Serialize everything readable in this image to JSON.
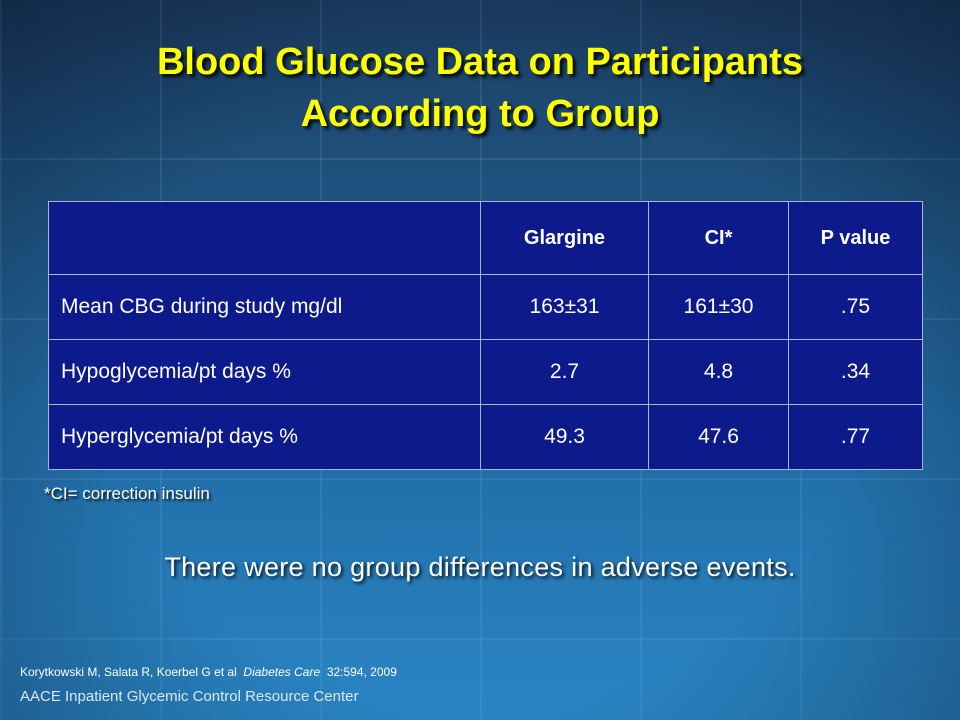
{
  "slide": {
    "title_line1": "Blood Glucose Data on Participants",
    "title_line2": "According to Group"
  },
  "table": {
    "headers": [
      "",
      "Glargine",
      "CI*",
      "P value"
    ],
    "rows": [
      {
        "label": "Mean CBG during study mg/dl",
        "glargine": "163±31",
        "ci": "161±30",
        "p": ".75"
      },
      {
        "label": "Hypoglycemia/pt days %",
        "glargine": "2.7",
        "ci": "4.8",
        "p": ".34"
      },
      {
        "label": "Hyperglycemia/pt days %",
        "glargine": "49.3",
        "ci": "47.6",
        "p": ".77"
      }
    ]
  },
  "footnote": "*CI= correction insulin",
  "statement": "There were no group differences in adverse events.",
  "citation": {
    "authors": "Korytkowski M, Salata R, Koerbel G et al",
    "journal": "Diabetes Care",
    "ref": "32:594, 2009"
  },
  "footer": "AACE Inpatient Glycemic Control Resource Center",
  "colors": {
    "title": "#ffff00",
    "table_bg": "#0d1a8c",
    "background_top": "#1c3f63",
    "background_bottom": "#2a86c4"
  }
}
